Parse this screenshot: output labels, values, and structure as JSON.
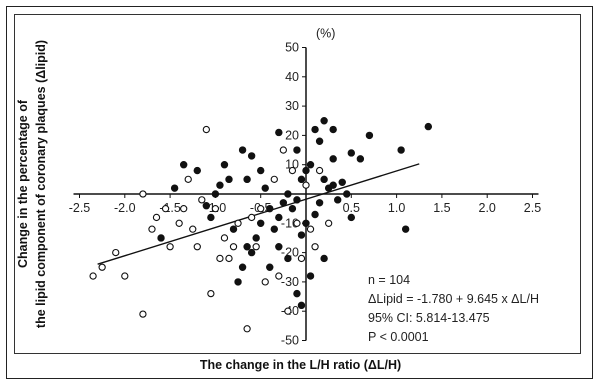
{
  "chart_data": {
    "type": "scatter",
    "xlabel": "The change in the L/H ratio (ΔL/H)",
    "ylabel_line1": "Change in the percentage of",
    "ylabel_line2": "the lipid component of coronary plaques (Δlipid)",
    "y_unit": "(%)",
    "xlim": [
      -2.5,
      2.5
    ],
    "ylim": [
      -50,
      50
    ],
    "x_ticks": [
      -2.5,
      -2.0,
      -1.5,
      -1.0,
      -0.5,
      0.5,
      1.0,
      1.5,
      2.0,
      2.5
    ],
    "x_tick_labels": [
      "-2.5",
      "-2.0",
      "-1.5",
      "-1.0",
      "-0.5",
      "0.5",
      "1.0",
      "1.5",
      "2.0",
      "2.5"
    ],
    "y_ticks": [
      50,
      40,
      30,
      20,
      10,
      -10,
      -20,
      -30,
      -40,
      -50
    ],
    "y_tick_labels": [
      "50",
      "40",
      "30",
      "20",
      "10",
      "-10",
      "-20",
      "-30",
      "-40",
      "-50"
    ],
    "regression": {
      "intercept": -1.78,
      "slope": 9.645,
      "x_range": [
        -2.3,
        1.25
      ]
    },
    "annotations": [
      "n = 104",
      "ΔLipid = -1.780 + 9.645 x ΔL/H",
      "95% CI: 5.814-13.475",
      "P < 0.0001"
    ],
    "series": [
      {
        "marker": "filled",
        "points": [
          [
            -0.3,
            21
          ],
          [
            -0.1,
            15
          ],
          [
            0.1,
            22
          ],
          [
            0.2,
            25
          ],
          [
            0.15,
            18
          ],
          [
            0.3,
            22
          ],
          [
            0.5,
            14
          ],
          [
            0.6,
            12
          ],
          [
            0.7,
            20
          ],
          [
            1.05,
            15
          ],
          [
            1.35,
            23
          ],
          [
            0.05,
            10
          ],
          [
            -0.05,
            5
          ],
          [
            0.2,
            5
          ],
          [
            0.25,
            2
          ],
          [
            0.3,
            3
          ],
          [
            0.35,
            -2
          ],
          [
            0.4,
            4
          ],
          [
            0.45,
            0
          ],
          [
            0.15,
            -3
          ],
          [
            0.1,
            -7
          ],
          [
            0.0,
            -10
          ],
          [
            -0.05,
            -14
          ],
          [
            -0.1,
            -2
          ],
          [
            -0.15,
            -5
          ],
          [
            -0.2,
            0
          ],
          [
            -0.25,
            -3
          ],
          [
            -0.3,
            -8
          ],
          [
            -0.35,
            -12
          ],
          [
            -0.4,
            -5
          ],
          [
            -0.45,
            2
          ],
          [
            -0.5,
            -10
          ],
          [
            -0.55,
            -15
          ],
          [
            -0.6,
            -20
          ],
          [
            -0.65,
            -18
          ],
          [
            -0.7,
            -25
          ],
          [
            -0.75,
            -30
          ],
          [
            -0.8,
            -12
          ],
          [
            -0.85,
            5
          ],
          [
            -0.9,
            10
          ],
          [
            -0.95,
            3
          ],
          [
            -1.0,
            0
          ],
          [
            -1.05,
            -8
          ],
          [
            -1.1,
            -4
          ],
          [
            -1.2,
            8
          ],
          [
            -1.35,
            10
          ],
          [
            -1.45,
            2
          ],
          [
            -1.6,
            -15
          ],
          [
            -0.5,
            8
          ],
          [
            -0.6,
            13
          ],
          [
            -0.7,
            15
          ],
          [
            -0.65,
            5
          ],
          [
            0.05,
            -28
          ],
          [
            -0.1,
            -34
          ],
          [
            -0.05,
            -38
          ],
          [
            0.2,
            -22
          ],
          [
            -0.2,
            -22
          ],
          [
            0.5,
            -8
          ],
          [
            1.1,
            -12
          ],
          [
            -0.3,
            -18
          ],
          [
            -0.4,
            -25
          ],
          [
            0.0,
            8
          ],
          [
            0.3,
            12
          ]
        ]
      },
      {
        "marker": "open",
        "points": [
          [
            -1.1,
            22
          ],
          [
            -1.8,
            0
          ],
          [
            -1.65,
            -8
          ],
          [
            -1.55,
            -5
          ],
          [
            -1.3,
            5
          ],
          [
            -1.15,
            -2
          ],
          [
            -1.25,
            -12
          ],
          [
            -1.0,
            -5
          ],
          [
            -0.9,
            -15
          ],
          [
            -0.8,
            -18
          ],
          [
            -0.95,
            -22
          ],
          [
            -1.7,
            -12
          ],
          [
            -2.1,
            -20
          ],
          [
            -2.25,
            -25
          ],
          [
            -2.35,
            -28
          ],
          [
            -2.0,
            -28
          ],
          [
            -1.8,
            -41
          ],
          [
            -1.4,
            -10
          ],
          [
            -1.2,
            -18
          ],
          [
            -0.75,
            -10
          ],
          [
            -0.6,
            -8
          ],
          [
            -0.5,
            -5
          ],
          [
            -0.35,
            5
          ],
          [
            -0.25,
            15
          ],
          [
            -0.45,
            -30
          ],
          [
            -0.2,
            -40
          ],
          [
            -0.65,
            -46
          ],
          [
            -1.05,
            -34
          ],
          [
            -0.15,
            8
          ],
          [
            0.0,
            3
          ],
          [
            0.05,
            -12
          ],
          [
            0.1,
            -18
          ],
          [
            -0.05,
            -22
          ],
          [
            0.15,
            8
          ],
          [
            -1.35,
            -5
          ],
          [
            -1.5,
            -18
          ],
          [
            -0.85,
            -22
          ],
          [
            -0.55,
            -18
          ],
          [
            -0.3,
            -28
          ],
          [
            -0.1,
            -10
          ],
          [
            0.25,
            -10
          ]
        ]
      }
    ]
  }
}
